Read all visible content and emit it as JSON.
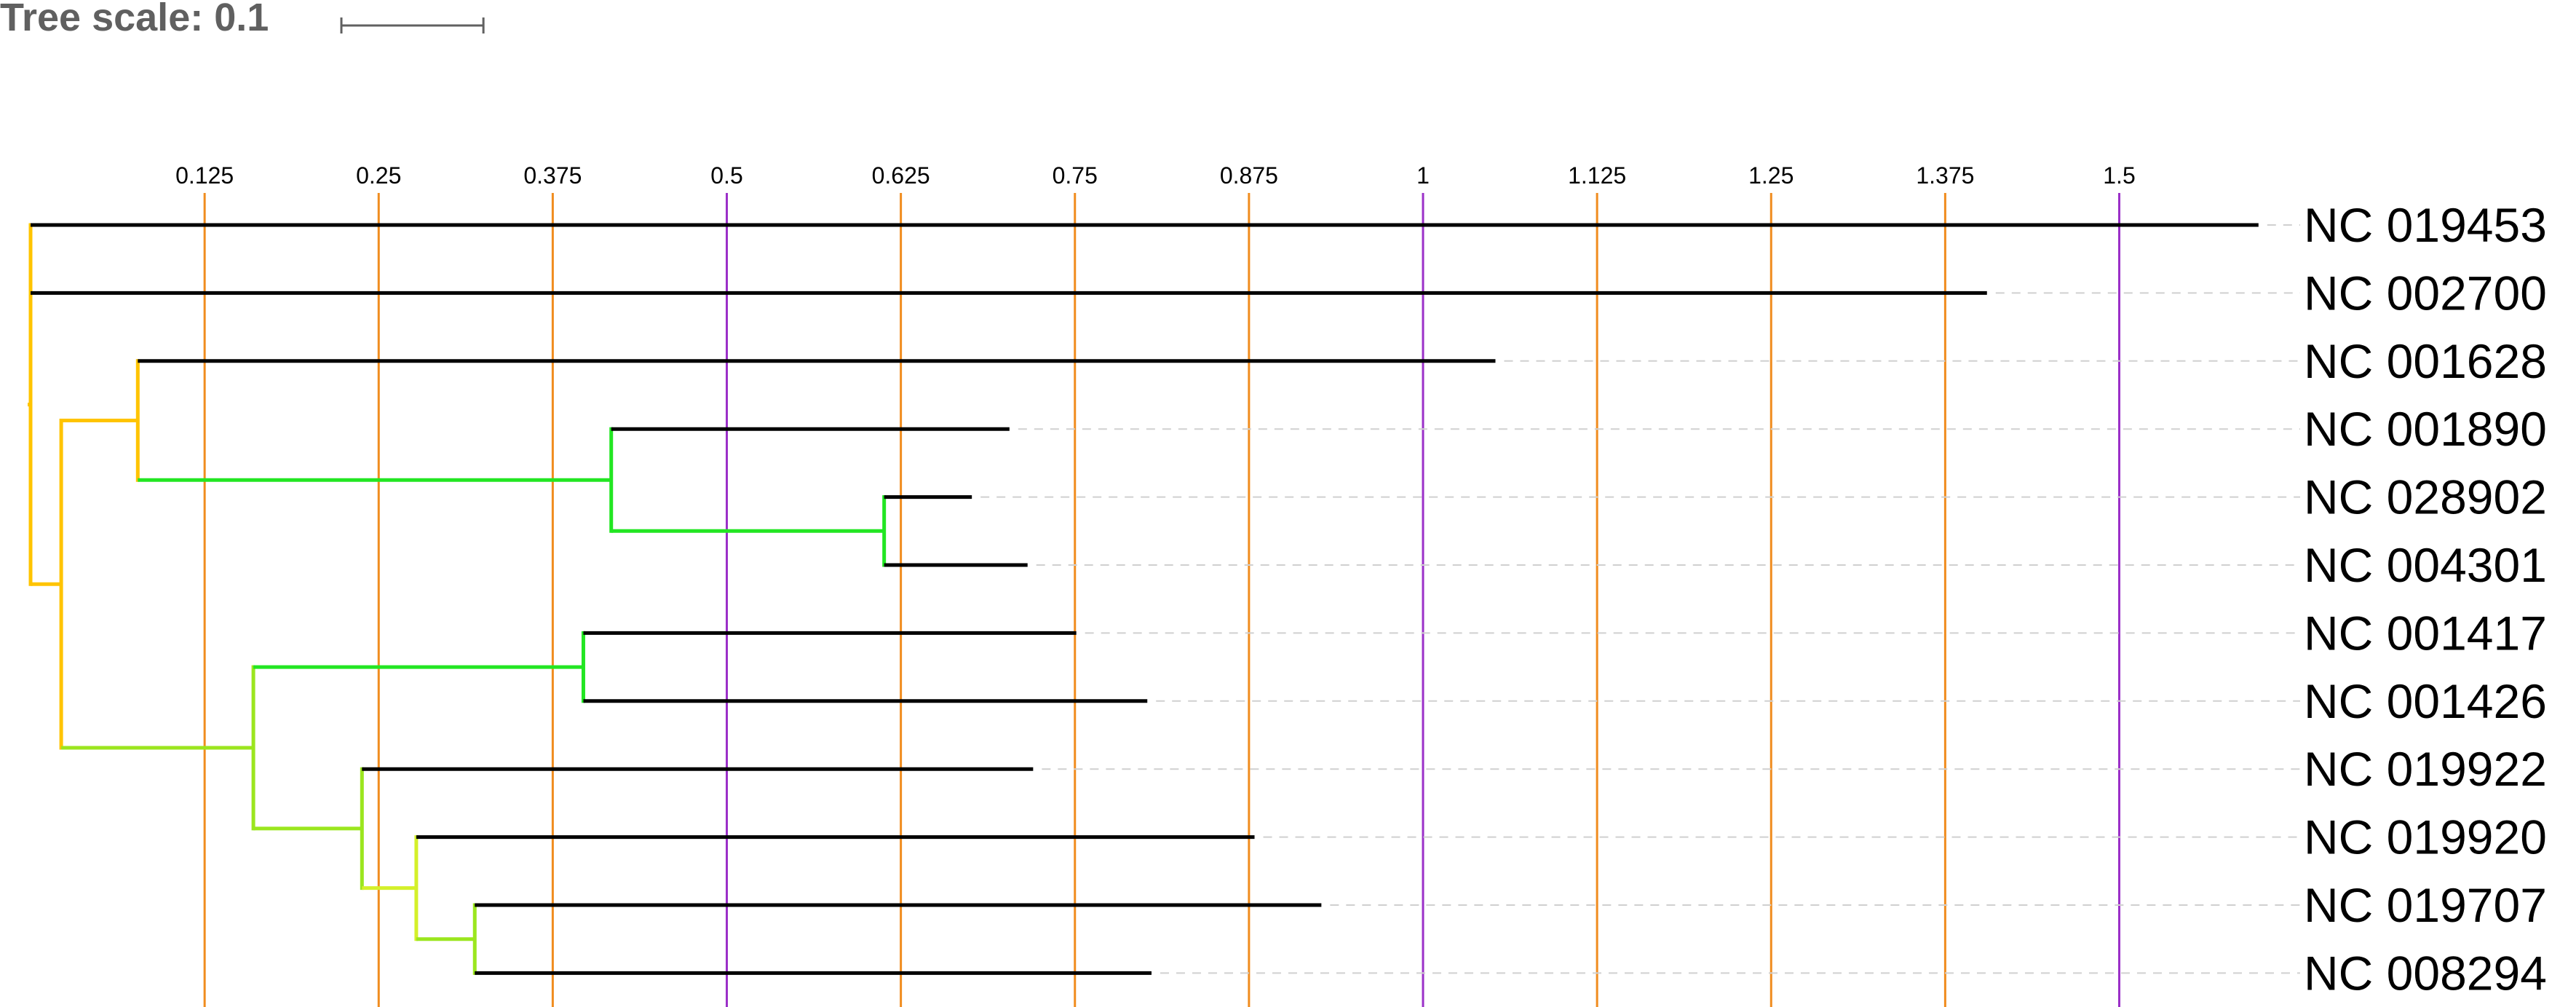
{
  "tree_scale": {
    "label": "Tree scale: 0.1",
    "value": 0.1
  },
  "axis": {
    "ticks": [
      {
        "label": "0.125",
        "value": 0.125,
        "emphasis": false
      },
      {
        "label": "0.25",
        "value": 0.25,
        "emphasis": false
      },
      {
        "label": "0.375",
        "value": 0.375,
        "emphasis": false
      },
      {
        "label": "0.5",
        "value": 0.5,
        "emphasis": true
      },
      {
        "label": "0.625",
        "value": 0.625,
        "emphasis": false
      },
      {
        "label": "0.75",
        "value": 0.75,
        "emphasis": false
      },
      {
        "label": "0.875",
        "value": 0.875,
        "emphasis": false
      },
      {
        "label": "1",
        "value": 1,
        "emphasis": true
      },
      {
        "label": "1.125",
        "value": 1.125,
        "emphasis": false
      },
      {
        "label": "1.25",
        "value": 1.25,
        "emphasis": false
      },
      {
        "label": "1.375",
        "value": 1.375,
        "emphasis": false
      },
      {
        "label": "1.5",
        "value": 1.5,
        "emphasis": true
      }
    ]
  },
  "colors": {
    "major_gridline": "#9b30c8",
    "minor_gridline": "#f08c1e",
    "branch_default": "#000000",
    "leader_line": "#d0d0d0",
    "clade_orange": "#ffc400",
    "clade_green": "#22e622",
    "clade_lime": "#9be61e",
    "clade_yellowgreen": "#d4f02a"
  },
  "leaves": [
    {
      "label": "NC 019453",
      "depth": 1.6
    },
    {
      "label": "NC 002700",
      "depth": 1.405
    },
    {
      "label": "NC 001628",
      "depth": 1.052
    },
    {
      "label": "NC 001890",
      "depth": 0.703
    },
    {
      "label": "NC 028902",
      "depth": 0.676
    },
    {
      "label": "NC 004301",
      "depth": 0.716
    },
    {
      "label": "NC 001417",
      "depth": 0.751
    },
    {
      "label": "NC 001426",
      "depth": 0.802
    },
    {
      "label": "NC 019922",
      "depth": 0.72
    },
    {
      "label": "NC 019920",
      "depth": 0.879
    },
    {
      "label": "NC 019707",
      "depth": 0.927
    },
    {
      "label": "NC 008294",
      "depth": 0.805
    }
  ],
  "internal_nodes": [
    {
      "id": "root",
      "depth": 0.0,
      "children": [
        "leaf0",
        "leaf1",
        "n1"
      ],
      "color": "orange"
    },
    {
      "id": "n1",
      "depth": 0.022,
      "children": [
        "n2",
        "n5"
      ],
      "color": "orange"
    },
    {
      "id": "n2",
      "depth": 0.077,
      "children": [
        "leaf2",
        "n3"
      ],
      "color": "orange"
    },
    {
      "id": "n3",
      "depth": 0.417,
      "children": [
        "leaf3",
        "n4"
      ],
      "color": "green"
    },
    {
      "id": "n4",
      "depth": 0.613,
      "children": [
        "leaf4",
        "leaf5"
      ],
      "color": "green"
    },
    {
      "id": "n5",
      "depth": 0.16,
      "children": [
        "n6",
        "n7"
      ],
      "color": "lime"
    },
    {
      "id": "n6",
      "depth": 0.397,
      "children": [
        "leaf6",
        "leaf7"
      ],
      "color": "green"
    },
    {
      "id": "n7",
      "depth": 0.238,
      "children": [
        "leaf8",
        "n8"
      ],
      "color": "lime"
    },
    {
      "id": "n8",
      "depth": 0.277,
      "children": [
        "leaf9",
        "n9"
      ],
      "color": "yellowgreen"
    },
    {
      "id": "n9",
      "depth": 0.319,
      "children": [
        "leaf10",
        "leaf11"
      ],
      "color": "lime"
    }
  ]
}
